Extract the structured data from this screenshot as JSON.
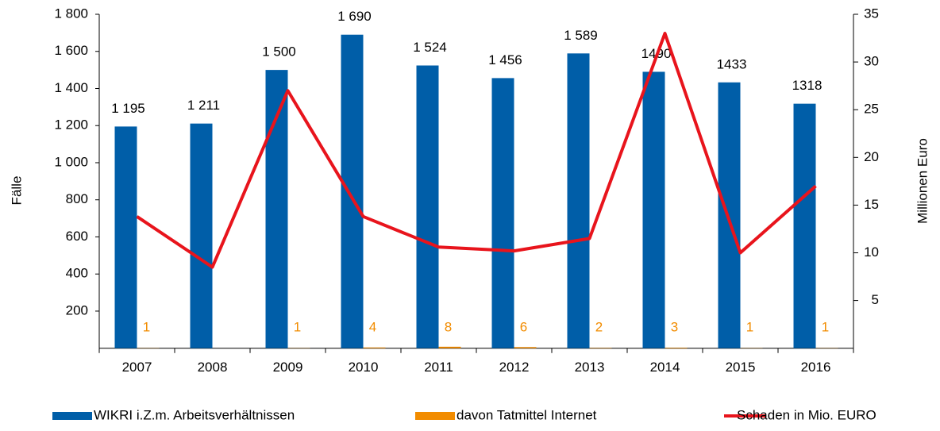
{
  "chart_data": {
    "type": "bar",
    "categories": [
      "2007",
      "2008",
      "2009",
      "2010",
      "2011",
      "2012",
      "2013",
      "2014",
      "2015",
      "2016"
    ],
    "series": [
      {
        "name": "WIKRI i.Z.m. Arbeitsverhältnissen",
        "color": "#005ea8",
        "values": [
          1195,
          1211,
          1500,
          1690,
          1524,
          1456,
          1589,
          1490,
          1433,
          1318
        ],
        "value_labels": [
          "1 195",
          "1 211",
          "1 500",
          "1 690",
          "1 524",
          "1 456",
          "1 589",
          "1490",
          "1433",
          "1318"
        ]
      },
      {
        "name": "davon Tatmittel Internet",
        "color": "#f28c00",
        "values": [
          1,
          null,
          1,
          4,
          8,
          6,
          2,
          3,
          1,
          1
        ]
      },
      {
        "name": "Schaden in Mio. EURO",
        "color": "#e8141c",
        "type": "line",
        "axis": "y2",
        "values": [
          13.8,
          8.5,
          27,
          13.8,
          10.6,
          10.2,
          11.5,
          33,
          10,
          17
        ]
      }
    ],
    "ylabel": "Fälle",
    "y2label": "Millionen Euro",
    "ylim": [
      0,
      1800
    ],
    "yticks": [
      200,
      400,
      600,
      800,
      {
        "value": 1000,
        "label": "1 000"
      },
      {
        "value": 1200,
        "label": "1 200"
      },
      {
        "value": 1400,
        "label": "1 400"
      },
      {
        "value": 1600,
        "label": "1 600"
      },
      {
        "value": 1800,
        "label": "1 800"
      }
    ],
    "y2lim": [
      0,
      35
    ],
    "y2ticks": [
      5,
      10,
      15,
      20,
      25,
      30,
      35
    ],
    "legend": "bottom"
  }
}
